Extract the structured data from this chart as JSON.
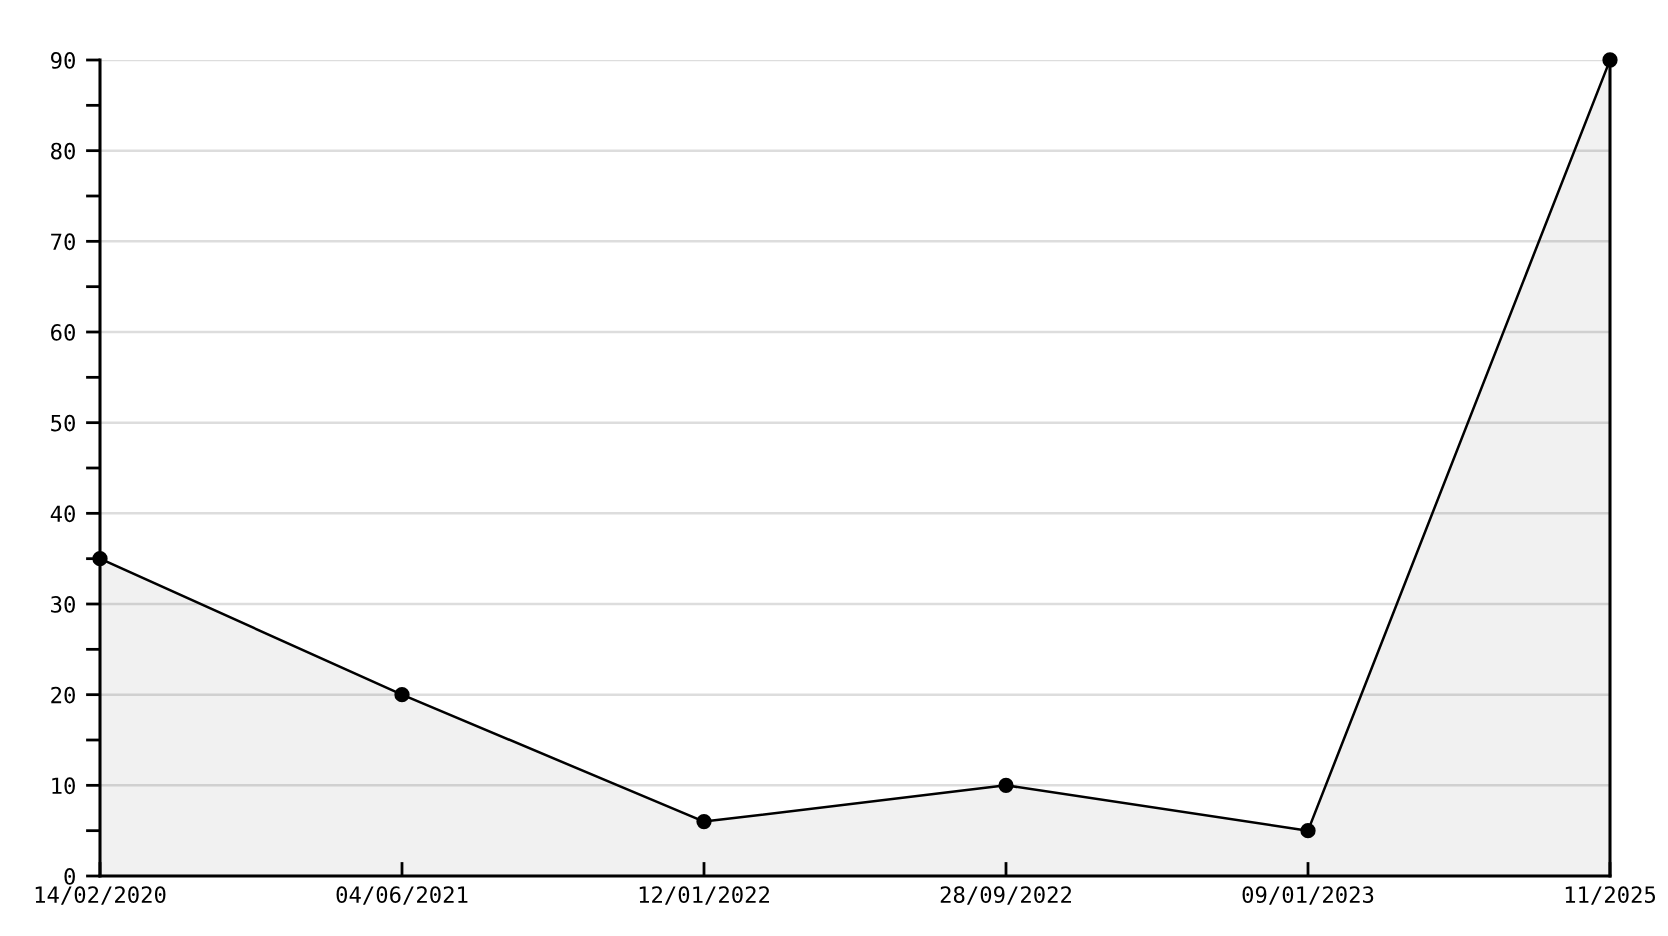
{
  "chart_data": {
    "type": "area",
    "categories": [
      "14/02/2020",
      "04/06/2021",
      "12/01/2022",
      "28/09/2022",
      "09/01/2023",
      "11/2025"
    ],
    "series": [
      {
        "color": "#000000",
        "values": [
          35,
          20,
          6,
          10,
          5,
          90
        ]
      }
    ],
    "ylim": [
      0,
      90
    ],
    "yticks": [
      0,
      {
        "value": 5,
        "label": null
      },
      10,
      {
        "value": 15,
        "label": null
      },
      20,
      {
        "value": 25,
        "label": null
      },
      30,
      {
        "value": 35,
        "label": null
      },
      40,
      {
        "value": 45,
        "label": null
      },
      50,
      {
        "value": 55,
        "label": null
      },
      60,
      {
        "value": 65,
        "label": null
      },
      70,
      {
        "value": 75,
        "label": null
      },
      80,
      {
        "value": 85,
        "label": null
      },
      90
    ],
    "grid": "y",
    "marker": "circle",
    "line_style": "solid"
  }
}
